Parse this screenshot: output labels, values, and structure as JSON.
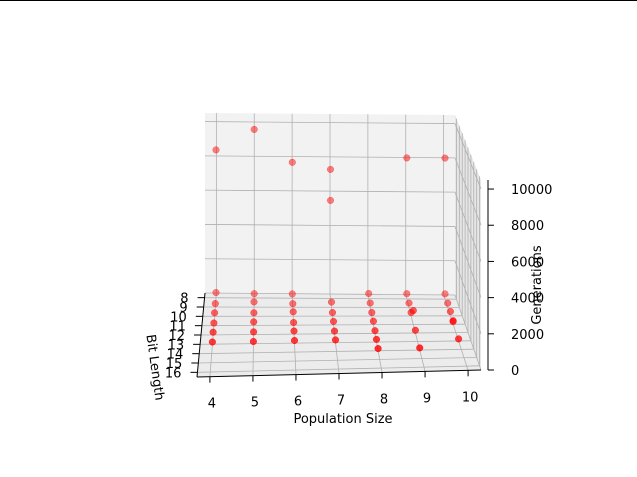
{
  "chart_data": {
    "type": "scatter",
    "projection": "3d",
    "title": "",
    "xlabel": "Population Size",
    "ylabel": "Bit Length",
    "zlabel": "Generations",
    "xlim": [
      3.7,
      10.3
    ],
    "ylim": [
      7.5,
      16.5
    ],
    "zlim": [
      0,
      10500
    ],
    "xticks": [
      4,
      5,
      6,
      7,
      8,
      9,
      10
    ],
    "yticks": [
      8,
      9,
      10,
      11,
      12,
      13,
      14,
      15,
      16
    ],
    "zticks": [
      0,
      2000,
      4000,
      6000,
      8000,
      10000
    ],
    "grid": true,
    "marker_color": "#ff0000",
    "points": [
      {
        "x": 4,
        "y": 8,
        "z": 8600
      },
      {
        "x": 4,
        "y": 8,
        "z": 300
      },
      {
        "x": 4,
        "y": 9,
        "z": 200
      },
      {
        "x": 4,
        "y": 10,
        "z": 200
      },
      {
        "x": 4,
        "y": 11,
        "z": 150
      },
      {
        "x": 4,
        "y": 12,
        "z": 150
      },
      {
        "x": 4,
        "y": 13,
        "z": 120
      },
      {
        "x": 5,
        "y": 8,
        "z": 9800
      },
      {
        "x": 5,
        "y": 8,
        "z": 250
      },
      {
        "x": 5,
        "y": 9,
        "z": 300
      },
      {
        "x": 5,
        "y": 10,
        "z": 200
      },
      {
        "x": 5,
        "y": 11,
        "z": 200
      },
      {
        "x": 5,
        "y": 12,
        "z": 150
      },
      {
        "x": 5,
        "y": 13,
        "z": 120
      },
      {
        "x": 6,
        "y": 8,
        "z": 7900
      },
      {
        "x": 6,
        "y": 8,
        "z": 250
      },
      {
        "x": 6,
        "y": 9,
        "z": 200
      },
      {
        "x": 6,
        "y": 10,
        "z": 250
      },
      {
        "x": 6,
        "y": 11,
        "z": 150
      },
      {
        "x": 6,
        "y": 12,
        "z": 180
      },
      {
        "x": 6,
        "y": 13,
        "z": 150
      },
      {
        "x": 7,
        "y": 8,
        "z": 7500
      },
      {
        "x": 7,
        "y": 8,
        "z": 5700
      },
      {
        "x": 7,
        "y": 9,
        "z": 300
      },
      {
        "x": 7,
        "y": 10,
        "z": 200
      },
      {
        "x": 7,
        "y": 11,
        "z": 200
      },
      {
        "x": 7,
        "y": 12,
        "z": 150
      },
      {
        "x": 7,
        "y": 13,
        "z": 150
      },
      {
        "x": 8,
        "y": 8,
        "z": 300
      },
      {
        "x": 8,
        "y": 9,
        "z": 250
      },
      {
        "x": 8,
        "y": 10,
        "z": 200
      },
      {
        "x": 8,
        "y": 11,
        "z": 200
      },
      {
        "x": 8,
        "y": 12,
        "z": 150
      },
      {
        "x": 8,
        "y": 13,
        "z": 150
      },
      {
        "x": 8,
        "y": 14,
        "z": 120
      },
      {
        "x": 9,
        "y": 8,
        "z": 8200
      },
      {
        "x": 9,
        "y": 8,
        "z": 300
      },
      {
        "x": 9,
        "y": 9,
        "z": 250
      },
      {
        "x": 9,
        "y": 10,
        "z": 200
      },
      {
        "x": 9,
        "y": 11,
        "z": 800
      },
      {
        "x": 9,
        "y": 12,
        "z": 150
      },
      {
        "x": 9,
        "y": 14,
        "z": 120
      },
      {
        "x": 10,
        "y": 8,
        "z": 8200
      },
      {
        "x": 10,
        "y": 8,
        "z": 300
      },
      {
        "x": 10,
        "y": 9,
        "z": 250
      },
      {
        "x": 10,
        "y": 10,
        "z": 250
      },
      {
        "x": 10,
        "y": 11,
        "z": 200
      },
      {
        "x": 10,
        "y": 11,
        "z": 150
      },
      {
        "x": 10,
        "y": 13,
        "z": 120
      }
    ]
  }
}
